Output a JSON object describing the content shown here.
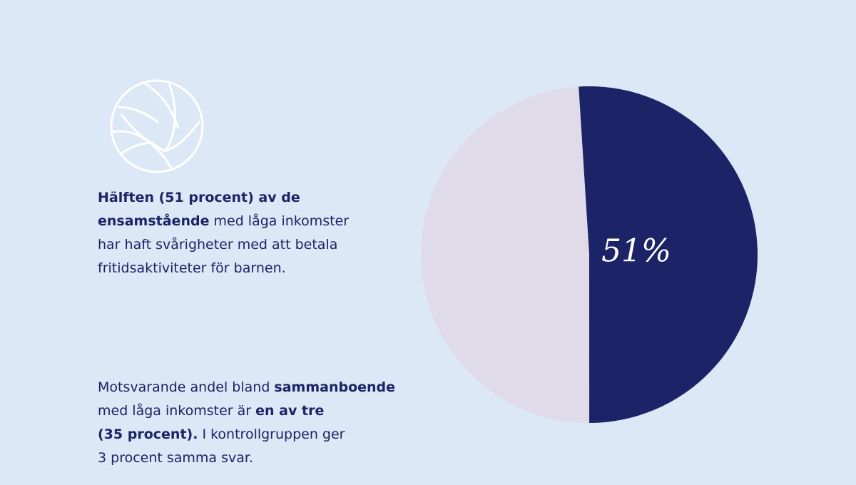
{
  "texts": {
    "paragraphs": [
      {
        "lines": [
          [
            {
              "text": "Hälften (51 procent) av de",
              "bold": true
            }
          ],
          [
            {
              "text": "ensamstående",
              "bold": true
            },
            {
              "text": " med låga inkomster",
              "bold": false
            }
          ],
          [
            {
              "text": "har haft svårigheter med att betala",
              "bold": false
            }
          ],
          [
            {
              "text": "fritidsaktiviteter för barnen.",
              "bold": false
            }
          ]
        ]
      },
      {
        "lines": [
          [
            {
              "text": "Motsvarande andel bland ",
              "bold": false
            },
            {
              "text": "sammanboende",
              "bold": true
            }
          ],
          [
            {
              "text": "med låga inkomster är ",
              "bold": false
            },
            {
              "text": "en av tre",
              "bold": true
            }
          ],
          [
            {
              "text": "(35 procent).",
              "bold": true
            },
            {
              "text": " I kontrollgruppen ger",
              "bold": false
            }
          ],
          [
            {
              "text": "3 procent samma svar.",
              "bold": false
            }
          ]
        ]
      }
    ]
  },
  "chart_data": {
    "type": "pie",
    "categories": [
      null,
      null
    ],
    "values": [
      51,
      49
    ],
    "value_labels": [
      "51%",
      null
    ],
    "colors": [
      "#1c2366",
      "#e0dbe9"
    ]
  }
}
